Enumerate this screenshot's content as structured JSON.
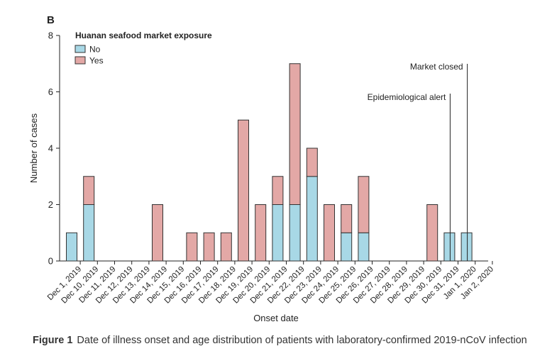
{
  "panel_label": "B",
  "caption": {
    "label": "Figure 1",
    "text": "Date of illness onset and age distribution of patients with laboratory-confirmed 2019-nCoV infection"
  },
  "chart_data": {
    "type": "bar",
    "stacked": true,
    "categories": [
      "Dec 1, 2019",
      "Dec 10, 2019",
      "Dec 11, 2019",
      "Dec 12, 2019",
      "Dec 13, 2019",
      "Dec 14, 2019",
      "Dec 15, 2019",
      "Dec 16, 2019",
      "Dec 17, 2019",
      "Dec 18, 2019",
      "Dec 19, 2019",
      "Dec 20, 2019",
      "Dec 21, 2019",
      "Dec 22, 2019",
      "Dec 23, 2019",
      "Dec 24, 2019",
      "Dec 25, 2019",
      "Dec 26, 2019",
      "Dec 27, 2019",
      "Dec 28, 2019",
      "Dec 29, 2019",
      "Dec 30, 2019",
      "Dec 31, 2019",
      "Jan 1, 2020",
      "Jan 2, 2020"
    ],
    "series": [
      {
        "name": "No",
        "color": "#a8d8e6",
        "values": [
          1,
          2,
          0,
          0,
          0,
          0,
          0,
          0,
          0,
          0,
          0,
          0,
          2,
          2,
          3,
          0,
          1,
          1,
          0,
          0,
          0,
          0,
          1,
          1,
          0
        ]
      },
      {
        "name": "Yes",
        "color": "#e3a8a6",
        "values": [
          0,
          1,
          0,
          0,
          0,
          2,
          0,
          1,
          1,
          1,
          5,
          2,
          1,
          5,
          1,
          2,
          1,
          2,
          0,
          0,
          0,
          2,
          0,
          0,
          0
        ]
      }
    ],
    "legend_title": "Huanan seafood market exposure",
    "legend_position": "top-left",
    "xlabel": "Onset date",
    "ylabel": "Number of cases",
    "ylim": [
      0,
      8
    ],
    "yticks": [
      0,
      2,
      4,
      6,
      8
    ],
    "grid": false,
    "annotations": [
      {
        "label": "Epidemiological alert",
        "category": "Dec 31, 2019"
      },
      {
        "label": "Market closed",
        "category": "Jan 1, 2020"
      }
    ]
  }
}
